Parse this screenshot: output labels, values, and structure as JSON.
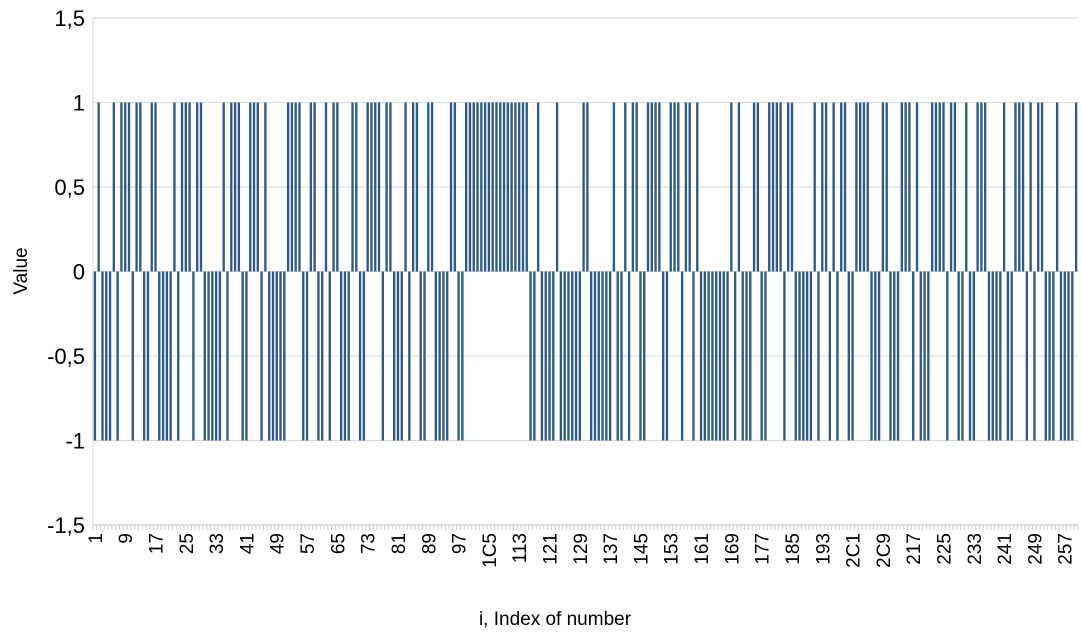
{
  "chart_data": {
    "type": "bar",
    "title": "",
    "xlabel": "i, Index of number",
    "ylabel": "Value",
    "ylim": [
      -1.5,
      1.5
    ],
    "y_ticks": [
      "-1,5",
      "-1",
      "-0,5",
      "0",
      "0,5",
      "1",
      "1,5"
    ],
    "x_tick_labels": [
      "1",
      "9",
      "17",
      "25",
      "33",
      "41",
      "49",
      "57",
      "65",
      "73",
      "81",
      "89",
      "97",
      "1C5",
      "113",
      "121",
      "129",
      "137",
      "145",
      "153",
      "161",
      "169",
      "177",
      "185",
      "193",
      "2C1",
      "2C9",
      "217",
      "225",
      "233",
      "241",
      "249",
      "257"
    ],
    "grid": true,
    "legend": "none",
    "bar_color": "#2e5a8a",
    "x_start": 1,
    "values": [
      -1,
      1,
      -1,
      -1,
      -1,
      1,
      -1,
      1,
      1,
      1,
      -1,
      1,
      1,
      -1,
      -1,
      1,
      1,
      -1,
      -1,
      -1,
      -1,
      1,
      -1,
      1,
      1,
      1,
      -1,
      1,
      1,
      -1,
      -1,
      -1,
      -1,
      -1,
      1,
      -1,
      1,
      1,
      1,
      -1,
      -1,
      1,
      1,
      1,
      -1,
      1,
      -1,
      -1,
      -1,
      -1,
      -1,
      1,
      1,
      1,
      1,
      -1,
      -1,
      1,
      1,
      -1,
      -1,
      1,
      -1,
      1,
      1,
      -1,
      -1,
      -1,
      1,
      1,
      -1,
      -1,
      1,
      1,
      1,
      1,
      -1,
      1,
      1,
      -1,
      -1,
      -1,
      1,
      -1,
      1,
      1,
      -1,
      -1,
      1,
      1,
      -1,
      -1,
      -1,
      -1,
      1,
      1,
      -1,
      -1,
      1,
      1,
      1,
      1,
      1,
      1,
      1,
      1,
      1,
      1,
      1,
      1,
      1,
      1,
      1,
      1,
      1,
      -1,
      -1,
      1,
      -1,
      -1,
      -1,
      -1,
      1,
      -1,
      -1,
      -1,
      -1,
      -1,
      -1,
      1,
      1,
      -1,
      -1,
      -1,
      -1,
      -1,
      -1,
      1,
      -1,
      -1,
      1,
      -1,
      1,
      1,
      -1,
      -1,
      1,
      1,
      1,
      1,
      -1,
      -1,
      1,
      1,
      1,
      -1,
      1,
      1,
      -1,
      1,
      -1,
      -1,
      -1,
      -1,
      -1,
      -1,
      -1,
      -1,
      1,
      -1,
      1,
      -1,
      -1,
      -1,
      1,
      1,
      -1,
      -1,
      1,
      1,
      1,
      1,
      -1,
      1,
      1,
      -1,
      -1,
      -1,
      -1,
      -1,
      1,
      -1,
      1,
      1,
      -1,
      1,
      -1,
      1,
      1,
      -1,
      -1,
      1,
      1,
      1,
      1,
      -1,
      -1,
      -1,
      1,
      1,
      -1,
      -1,
      -1,
      1,
      1,
      1,
      -1,
      1,
      -1,
      -1,
      -1,
      1,
      1,
      1,
      1,
      -1,
      1,
      1,
      -1,
      -1,
      1,
      -1,
      -1,
      1,
      1,
      1,
      -1,
      -1,
      -1,
      -1,
      1,
      -1,
      -1,
      1,
      1,
      1,
      -1,
      1,
      -1,
      1,
      1,
      -1,
      -1,
      -1,
      1,
      -1,
      -1,
      -1,
      -1,
      1
    ]
  }
}
